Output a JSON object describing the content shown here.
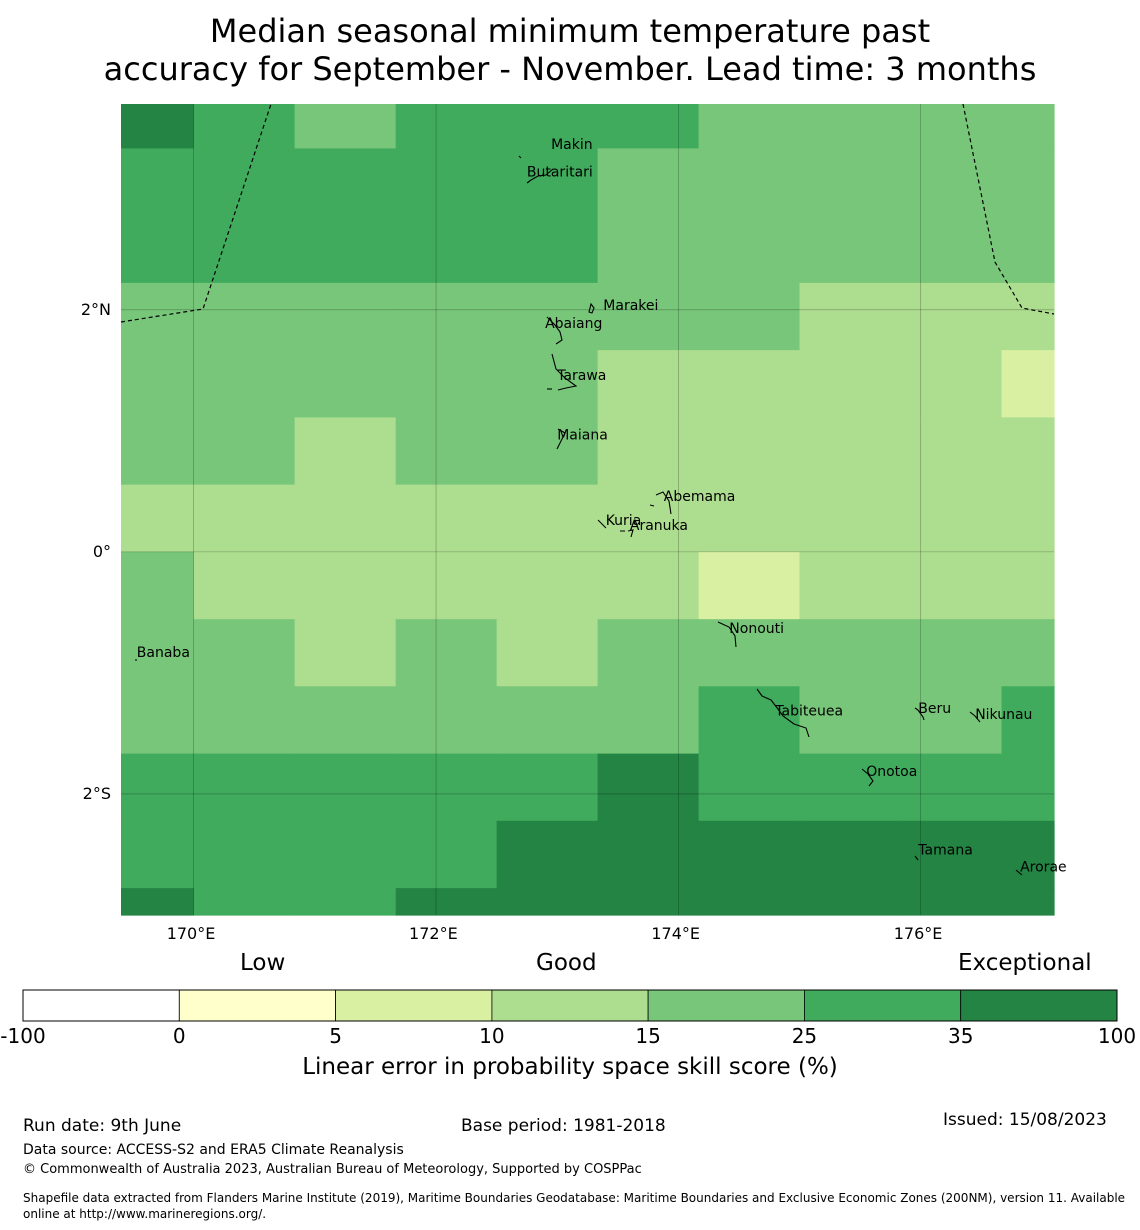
{
  "title_line1": "Median seasonal minimum temperature past",
  "title_line2": "accuracy for September - November. Lead time: 3 months",
  "map": {
    "lon_range": [
      169.4,
      177.1
    ],
    "lat_range": [
      -3.0,
      3.7
    ],
    "x_ticks": [
      {
        "lon": 170,
        "label": "170°E"
      },
      {
        "lon": 172,
        "label": "172°E"
      },
      {
        "lon": 174,
        "label": "174°E"
      },
      {
        "lon": 176,
        "label": "176°E"
      }
    ],
    "y_ticks": [
      {
        "lat": 2,
        "label": "2°N"
      },
      {
        "lat": 0,
        "label": "0°"
      },
      {
        "lat": -2,
        "label": "2°S"
      }
    ],
    "grid": true,
    "grid_lon_edges": [
      169.4,
      170.0,
      170.833,
      171.667,
      172.5,
      173.333,
      174.167,
      175.0,
      175.833,
      176.667,
      177.1
    ],
    "grid_lat_edges": [
      3.7,
      3.333,
      2.222,
      1.667,
      1.111,
      0.556,
      0.0,
      -0.556,
      -1.111,
      -1.667,
      -2.222,
      -2.778,
      -3.0
    ],
    "cells": [
      [
        6,
        5,
        4,
        5,
        5,
        5,
        4,
        4,
        4,
        4
      ],
      [
        5,
        5,
        5,
        5,
        5,
        4,
        4,
        4,
        4,
        4
      ],
      [
        4,
        4,
        4,
        4,
        4,
        4,
        4,
        3,
        3,
        3
      ],
      [
        4,
        4,
        4,
        4,
        4,
        3,
        3,
        3,
        3,
        2
      ],
      [
        4,
        4,
        3,
        4,
        4,
        3,
        3,
        3,
        3,
        3
      ],
      [
        3,
        3,
        3,
        3,
        3,
        3,
        3,
        3,
        3,
        3
      ],
      [
        4,
        3,
        3,
        3,
        3,
        3,
        2,
        3,
        3,
        3
      ],
      [
        4,
        4,
        3,
        4,
        3,
        4,
        4,
        4,
        4,
        4
      ],
      [
        4,
        4,
        4,
        4,
        4,
        4,
        5,
        4,
        4,
        5
      ],
      [
        5,
        5,
        5,
        5,
        5,
        6,
        5,
        5,
        5,
        5
      ],
      [
        5,
        5,
        5,
        5,
        6,
        6,
        6,
        6,
        6,
        6
      ],
      [
        6,
        5,
        5,
        6,
        6,
        6,
        6,
        6,
        6,
        6
      ],
      [
        6,
        6,
        6,
        5,
        6,
        6,
        6,
        6,
        6,
        6
      ]
    ],
    "islands": [
      {
        "name": "Makin",
        "lon": 172.95,
        "lat": 3.33
      },
      {
        "name": "Butaritari",
        "lon": 172.75,
        "lat": 3.1
      },
      {
        "name": "Marakei",
        "lon": 173.38,
        "lat": 2.0
      },
      {
        "name": "Abaiang",
        "lon": 172.9,
        "lat": 1.85
      },
      {
        "name": "Tarawa",
        "lon": 173.0,
        "lat": 1.42
      },
      {
        "name": "Maiana",
        "lon": 173.0,
        "lat": 0.93
      },
      {
        "name": "Abemama",
        "lon": 173.88,
        "lat": 0.42
      },
      {
        "name": "Kuria",
        "lon": 173.4,
        "lat": 0.22
      },
      {
        "name": "Aranuka",
        "lon": 173.6,
        "lat": 0.18
      },
      {
        "name": "Nonouti",
        "lon": 174.42,
        "lat": -0.67
      },
      {
        "name": "Banaba",
        "lon": 169.53,
        "lat": -0.87
      },
      {
        "name": "Tabiteuea",
        "lon": 174.8,
        "lat": -1.35
      },
      {
        "name": "Beru",
        "lon": 175.98,
        "lat": -1.33
      },
      {
        "name": "Nikunau",
        "lon": 176.45,
        "lat": -1.38
      },
      {
        "name": "Onotoa",
        "lon": 175.55,
        "lat": -1.85
      },
      {
        "name": "Tamana",
        "lon": 175.98,
        "lat": -2.5
      },
      {
        "name": "Arorae",
        "lon": 176.82,
        "lat": -2.64
      }
    ],
    "boundary_style": "dashed"
  },
  "colorbar": {
    "headings": [
      "Low",
      "Good",
      "Exceptional"
    ],
    "boundaries": [
      "-100",
      "0",
      "5",
      "10",
      "15",
      "25",
      "35",
      "100"
    ],
    "colors": [
      "#ffffff",
      "#ffffcc",
      "#d9f0a3",
      "#addd8e",
      "#78c679",
      "#41ab5d",
      "#238443"
    ],
    "label": "Linear error in probability space skill score (%)"
  },
  "footer": {
    "run_date": "Run date: 9th June",
    "base_period": "Base period: 1981-2018",
    "issued": "Issued: 15/08/2023",
    "data_source": "Data source: ACCESS-S2 and ERA5 Climate Reanalysis",
    "copyright": "© Commonwealth of Australia 2023, Australian Bureau of Meteorology, Supported by COSPPac",
    "shapefile_line1": "Shapefile data extracted from Flanders Marine Institute (2019), Maritime Boundaries Geodatabase: Maritime Boundaries and Exclusive Economic Zones (200NM), version 11. Available",
    "shapefile_line2": "online at http://www.marineregions.org/."
  }
}
